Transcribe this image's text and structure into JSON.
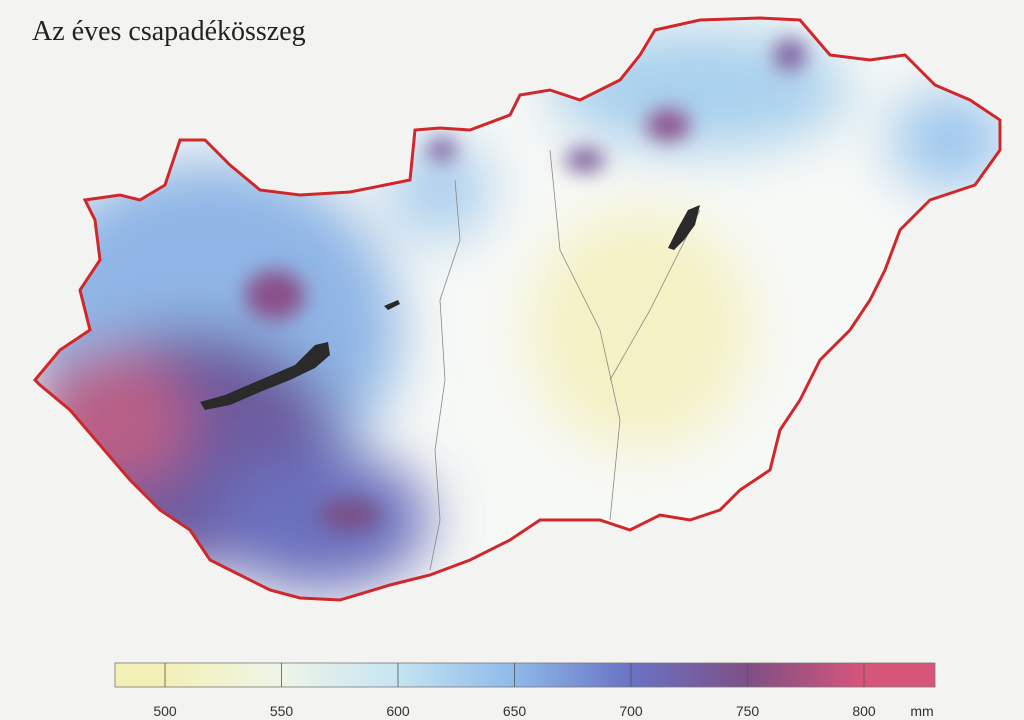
{
  "title": "Az éves csapadékösszeg",
  "legend": {
    "ticks": [
      500,
      550,
      600,
      650,
      700,
      750,
      800
    ],
    "colors": [
      "#f3f0b6",
      "#eef5e8",
      "#c5e4f1",
      "#8eb9ea",
      "#6a72c4",
      "#7e4f86",
      "#d8557a"
    ],
    "unit": "mm"
  }
}
